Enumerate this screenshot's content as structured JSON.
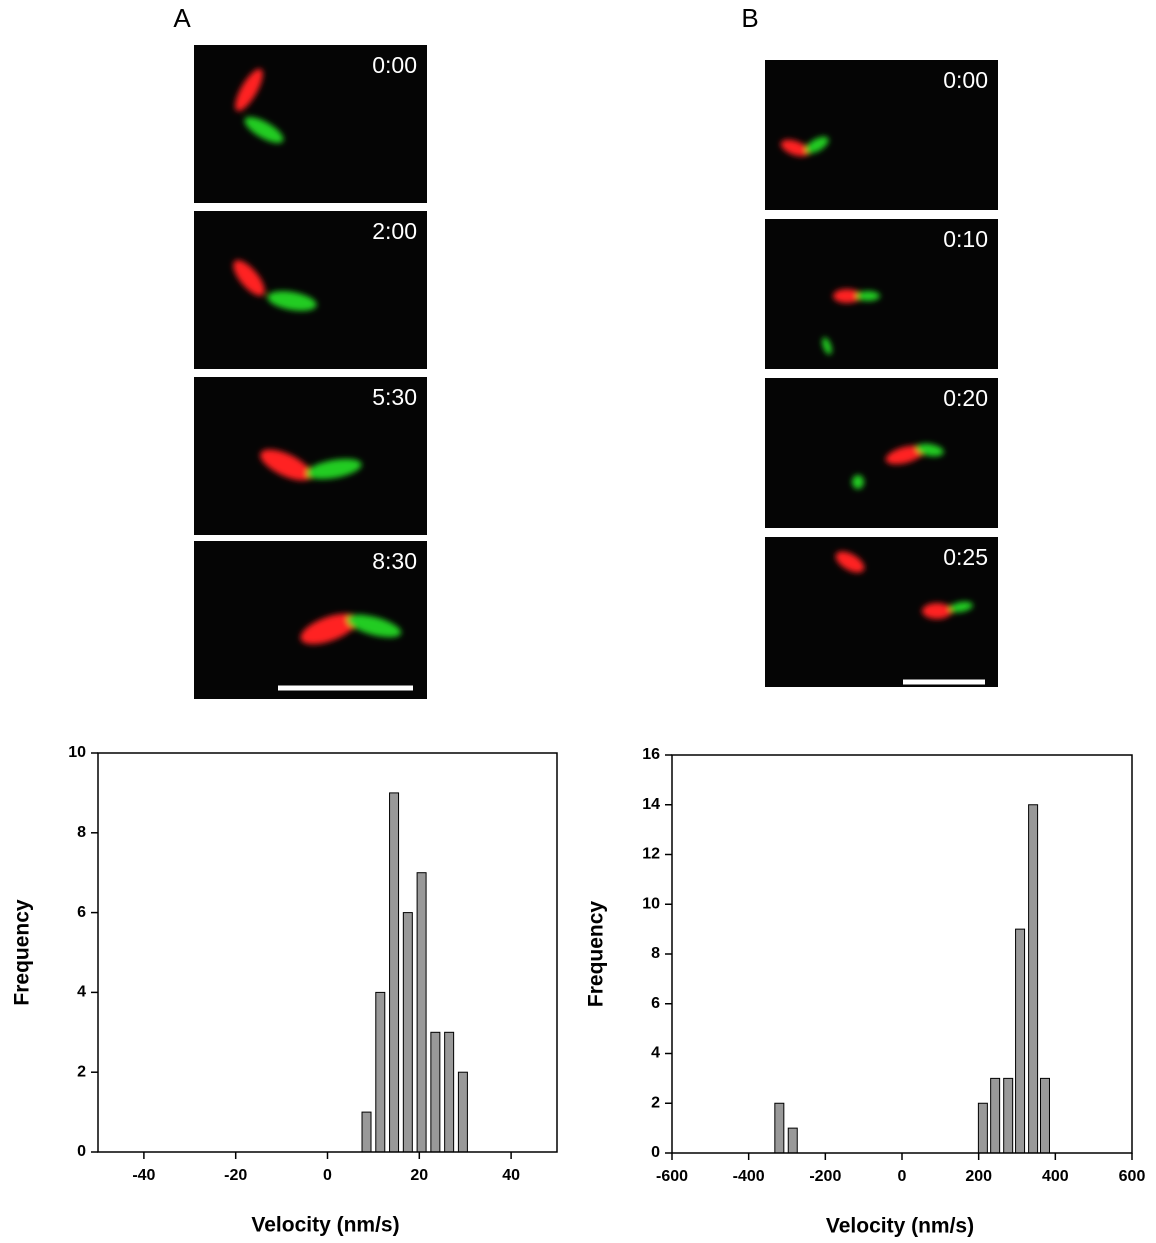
{
  "panels": [
    {
      "label": "A",
      "frames": [
        "0:00",
        "2:00",
        "5:30",
        "8:30"
      ]
    },
    {
      "label": "B",
      "frames": [
        "0:00",
        "0:10",
        "0:20",
        "0:25"
      ]
    }
  ],
  "chart_data": [
    {
      "type": "bar",
      "xlabel": "Velocity (nm/s)",
      "ylabel": "Frequency",
      "x": [
        8.5,
        11.5,
        14.5,
        17.5,
        20.5,
        23.5,
        26.5,
        29.5
      ],
      "values": [
        1,
        4,
        9,
        6,
        7,
        3,
        3,
        2
      ],
      "color": "#999999",
      "xlim": [
        -50,
        50
      ],
      "xticks": [
        -40,
        -20,
        0,
        20,
        40
      ],
      "ylim": [
        0,
        10
      ],
      "yticks": [
        0,
        2,
        4,
        6,
        8,
        10
      ]
    },
    {
      "type": "bar",
      "xlabel": "Velocity (nm/s)",
      "ylabel": "Frequency",
      "x": [
        -320,
        -285,
        211,
        243,
        277,
        308,
        342,
        373
      ],
      "values": [
        2,
        1,
        2,
        3,
        3,
        9,
        14,
        3
      ],
      "color": "#999999",
      "xlim": [
        -600,
        600
      ],
      "xticks": [
        -600,
        -400,
        -200,
        0,
        200,
        400,
        600
      ],
      "ylim": [
        0,
        16
      ],
      "yticks": [
        0,
        2,
        4,
        6,
        8,
        10,
        12,
        14,
        16
      ]
    }
  ]
}
